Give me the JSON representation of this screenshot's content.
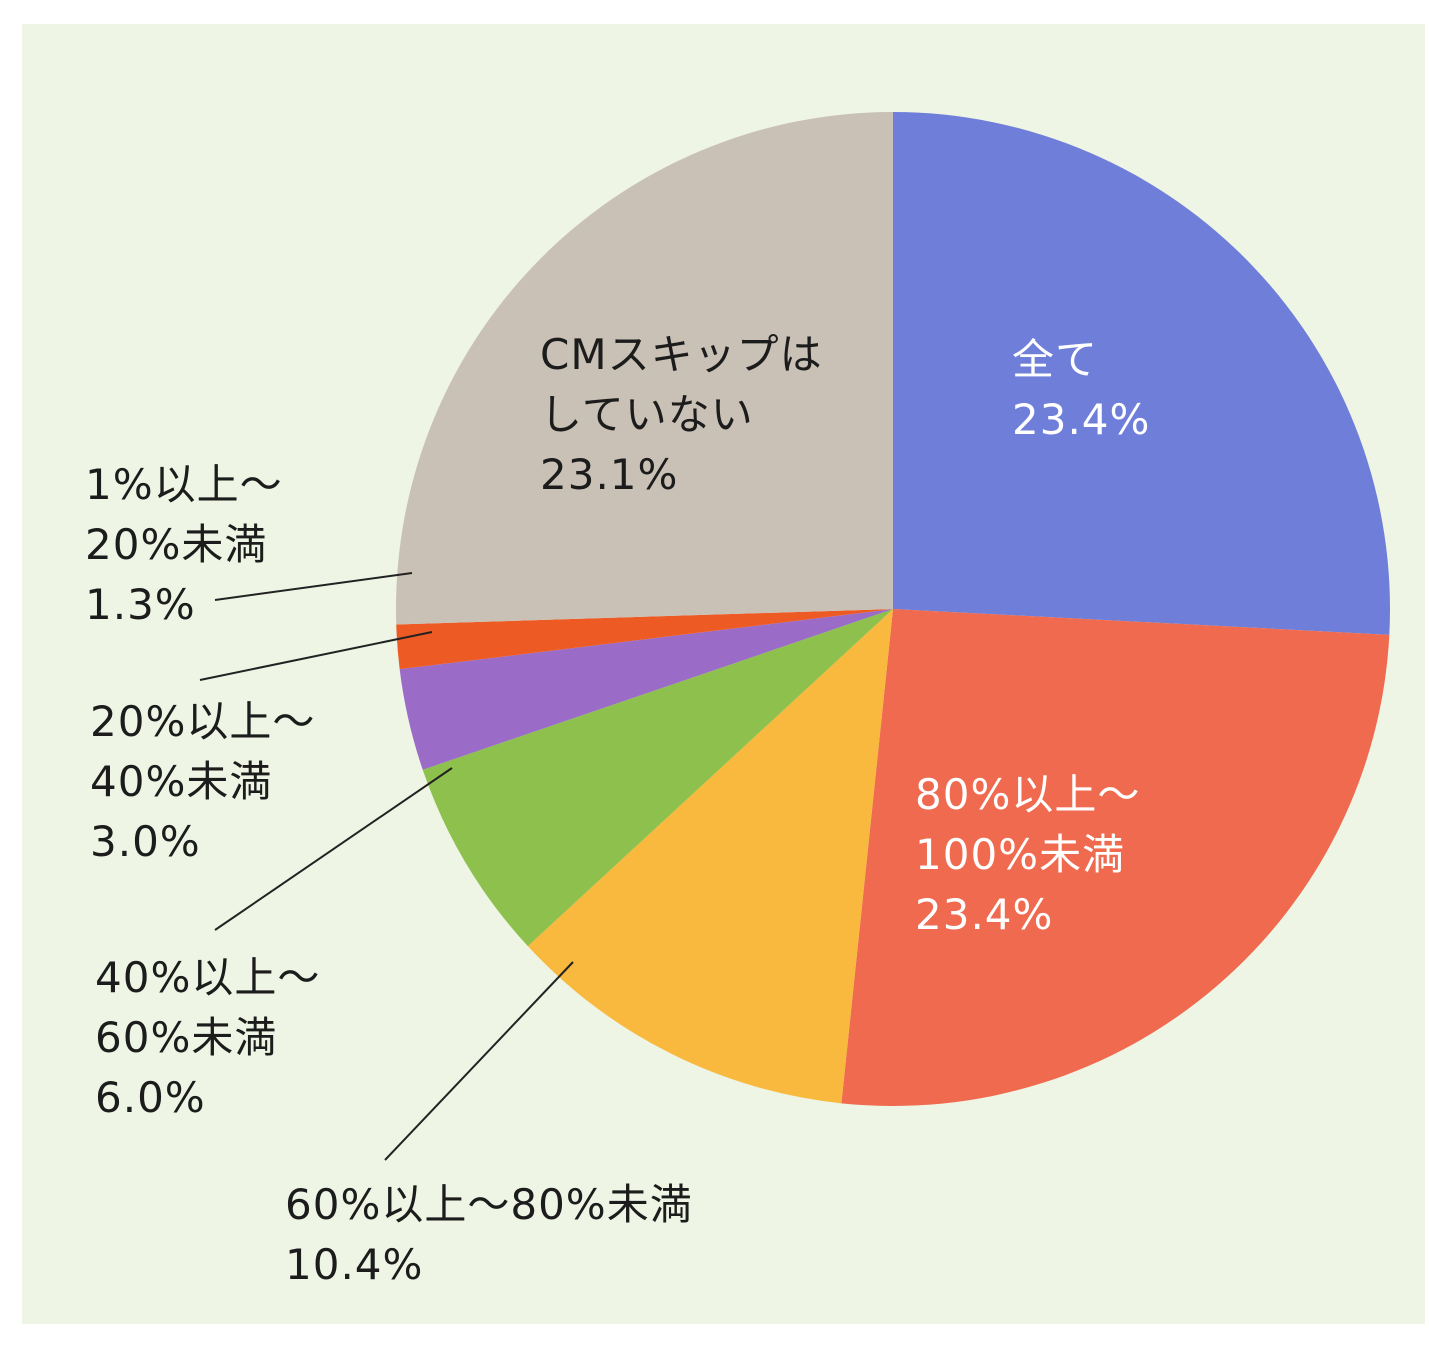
{
  "chart_data": {
    "type": "pie",
    "categories": [
      "全て",
      "80%以上～\n100%未満",
      "60%以上～80%未満",
      "40%以上～\n60%未満",
      "20%以上～\n40%未満",
      "1%以上～\n20%未満",
      "CMスキップは\nしていない"
    ],
    "values": [
      23.4,
      23.4,
      10.4,
      6.0,
      3.0,
      1.3,
      23.1
    ],
    "value_labels": [
      "23.4%",
      "23.4%",
      "10.4%",
      "6.0%",
      "3.0%",
      "1.3%",
      "23.1%"
    ],
    "colors": [
      "#6f7fd9",
      "#ef6a4f",
      "#f9b93e",
      "#8dc04c",
      "#9a6cc8",
      "#ee5a24",
      "#c9c1b5"
    ]
  }
}
